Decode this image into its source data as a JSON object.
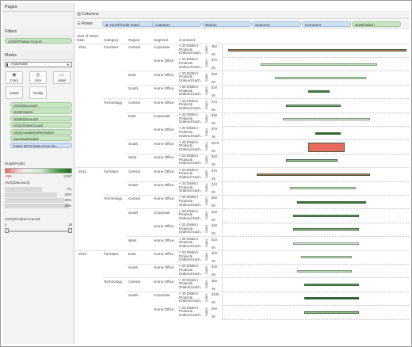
{
  "left": {
    "pages": {
      "title": "Pages"
    },
    "filters": {
      "title": "Filters",
      "items": [
        "AGG(Product Count)"
      ]
    },
    "marks": {
      "title": "Marks",
      "type": "Automatic",
      "buttons": [
        {
          "label": "Color",
          "icon": "◉"
        },
        {
          "label": "Size",
          "icon": "◎"
        },
        {
          "label": "Label",
          "icon": "▭"
        },
        {
          "label": "Detail",
          "icon": ""
        },
        {
          "label": "Tooltip",
          "icon": ""
        }
      ],
      "fields": [
        {
          "label": "AVG(Discount)",
          "icon": "◉"
        },
        {
          "label": "SUM(Sales)",
          "icon": "▤"
        },
        {
          "label": "SUM(Discount)",
          "icon": "▤"
        },
        {
          "label": "AGG(OrderCount)",
          "icon": ""
        },
        {
          "label": "AGG(AvgItemsPerOrder)",
          "icon": ""
        },
        {
          "label": "AvgYearlySales",
          "icon": ""
        },
        {
          "label": "Insert INTO Data From Ta...",
          "icon": ""
        }
      ]
    },
    "legend_profit": {
      "title": "SUM(Profit)",
      "min": "-895",
      "max": "3,087"
    },
    "legend_discount": {
      "title": "AVG(Discount)",
      "rows": [
        {
          "label": "7%",
          "fill": 0.55
        },
        {
          "label": "10%",
          "fill": 0.78
        },
        {
          "label": "20%",
          "fill": 0.88
        },
        {
          "label": "30%",
          "fill": 0.95
        }
      ]
    },
    "legend_pc": {
      "title": "AGG(Product Count)",
      "min": "4",
      "max": "18"
    }
  },
  "shelves": {
    "columns": {
      "title": "Columns"
    },
    "rows": {
      "title": "Rows",
      "pills": [
        {
          "label": "YEAR(Order Date)",
          "color": "blue"
        },
        {
          "label": "Category",
          "color": "blue"
        },
        {
          "label": "Region",
          "color": "blue"
        },
        {
          "label": "Segment",
          "color": "blue"
        },
        {
          "label": "Comment",
          "color": "blue"
        },
        {
          "label": "SUM(Sales)",
          "color": "green"
        }
      ]
    }
  },
  "view": {
    "headers": {
      "year": "Year of Order Date",
      "category": "Category",
      "region": "Region",
      "segment": "Segment",
      "comment": "Comment"
    },
    "axis_title": "Sales",
    "comment_text": [
      "< 20 Distinct",
      "Products",
      "Ordered Each.."
    ],
    "rows": [
      {
        "year": "2011",
        "category": "Furniture",
        "region": "Central",
        "segment": "Corporate",
        "ticks": [
          "$5K",
          "0K"
        ],
        "start": 0.02,
        "width": 0.98,
        "color": "#ea6a5e"
      },
      {
        "year": "",
        "category": "",
        "region": "",
        "segment": "Home Office",
        "ticks": [
          "$7K",
          "0K"
        ],
        "start": 0.2,
        "width": 0.64,
        "color": "#c7e3c1"
      },
      {
        "year": "",
        "category": "",
        "region": "East",
        "segment": "Home Office",
        "ticks": [
          "$4K",
          "0K"
        ],
        "start": 0.28,
        "width": 0.5,
        "color": "#bfdfb8"
      },
      {
        "year": "",
        "category": "",
        "region": "South",
        "segment": "Home Office",
        "ticks": [
          "$2K",
          "0K"
        ],
        "start": 0.46,
        "width": 0.12,
        "color": "#3b8a3b"
      },
      {
        "year": "",
        "category": "Technology",
        "region": "Central",
        "segment": "Home Office",
        "ticks": [
          "$7K",
          "0K"
        ],
        "start": 0.34,
        "width": 0.3,
        "color": "#8cc283"
      },
      {
        "year": "",
        "category": "",
        "region": "East",
        "segment": "Corporate",
        "ticks": [
          "$4K",
          "0K"
        ],
        "start": 0.32,
        "width": 0.48,
        "color": "#e8e8e8"
      },
      {
        "year": "",
        "category": "",
        "region": "",
        "segment": "Home Office",
        "ticks": [
          "$7K",
          "0K"
        ],
        "start": 0.5,
        "width": 0.14,
        "color": "#1f6e1f"
      },
      {
        "year": "",
        "category": "",
        "region": "South",
        "segment": "Home Office",
        "ticks": [
          "$11K",
          "0K"
        ],
        "start": 0.46,
        "width": 0.2,
        "color": "#ea6a5e"
      },
      {
        "year": "",
        "category": "",
        "region": "West",
        "segment": "Home Office",
        "ticks": [
          "$2K",
          "0K"
        ],
        "start": 0.34,
        "width": 0.28,
        "color": "#8cc283"
      },
      {
        "year": "2012",
        "category": "Furniture",
        "region": "Central",
        "segment": "Home Office",
        "ticks": [
          "$7K",
          "0K"
        ],
        "start": 0.18,
        "width": 0.62,
        "color": "#ea6a5e"
      },
      {
        "year": "",
        "category": "",
        "region": "South",
        "segment": "Home Office",
        "ticks": [
          "$1K",
          "0K"
        ],
        "start": 0.36,
        "width": 0.36,
        "color": "#c7e3c1"
      },
      {
        "year": "",
        "category": "Technology",
        "region": "Central",
        "segment": "Home Office",
        "ticks": [
          "$5K",
          "0K"
        ],
        "start": 0.4,
        "width": 0.38,
        "color": "#2f7f2f"
      },
      {
        "year": "",
        "category": "",
        "region": "South",
        "segment": "Corporate",
        "ticks": [
          "$4K",
          "0K"
        ],
        "start": 0.38,
        "width": 0.36,
        "color": "#5aa55a"
      },
      {
        "year": "",
        "category": "",
        "region": "",
        "segment": "Home Office",
        "ticks": [
          "$4K",
          "0K"
        ],
        "start": 0.38,
        "width": 0.36,
        "color": "#8cc283"
      },
      {
        "year": "",
        "category": "",
        "region": "West",
        "segment": "Home Office",
        "ticks": [
          "$1K",
          "0K"
        ],
        "start": 0.38,
        "width": 0.36,
        "color": "#e8e8e8"
      },
      {
        "year": "2013",
        "category": "Furniture",
        "region": "East",
        "segment": "Home Office",
        "ticks": [
          "$4K",
          "0K"
        ],
        "start": 0.42,
        "width": 0.28,
        "color": "#c7e3c1"
      },
      {
        "year": "",
        "category": "",
        "region": "South",
        "segment": "Home Office",
        "ticks": [
          "$4K",
          "0K"
        ],
        "start": 0.4,
        "width": 0.3,
        "color": "#bfdfb8"
      },
      {
        "year": "",
        "category": "Technology",
        "region": "Central",
        "segment": "Home Office",
        "ticks": [
          "$5K",
          "0K"
        ],
        "start": 0.44,
        "width": 0.3,
        "color": "#5aa55a"
      },
      {
        "year": "",
        "category": "",
        "region": "South",
        "segment": "Corporate",
        "ticks": [
          "$10K",
          "0K"
        ],
        "start": 0.44,
        "width": 0.3,
        "color": "#1f6e1f"
      },
      {
        "year": "",
        "category": "",
        "region": "",
        "segment": "Home Office",
        "ticks": [
          "$4K",
          "0K"
        ],
        "start": 0.44,
        "width": 0.3,
        "color": "#8cc283"
      }
    ]
  }
}
